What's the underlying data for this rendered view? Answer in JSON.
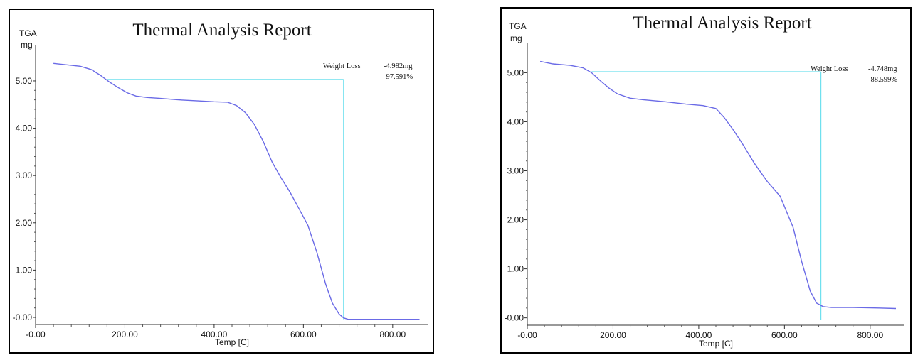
{
  "chart_data": [
    {
      "type": "line",
      "title": "Thermal Analysis Report",
      "ylabel": "TGA",
      "yunit": "mg",
      "xlabel": "Temp  [C]",
      "xlim": [
        0,
        880
      ],
      "ylim": [
        -0.15,
        5.75
      ],
      "xticks": [
        0,
        200,
        400,
        600,
        800
      ],
      "xtick_labels": [
        "-0.00",
        "200.00",
        "400.00",
        "600.00",
        "800.00"
      ],
      "yticks": [
        0,
        1,
        2,
        3,
        4,
        5
      ],
      "ytick_labels": [
        "-0.00",
        "1.00",
        "2.00",
        "3.00",
        "4.00",
        "5.00"
      ],
      "grid": false,
      "annotation": {
        "label": "Weight Loss",
        "mass": "-4.982mg",
        "percent": "-97.591%"
      },
      "marker": {
        "y": 5.03,
        "x_start": 160,
        "x_end": 690
      },
      "series": [
        {
          "color": "#6a6ae6",
          "x": [
            40,
            70,
            100,
            125,
            145,
            165,
            185,
            205,
            225,
            250,
            280,
            320,
            360,
            400,
            430,
            450,
            470,
            490,
            510,
            530,
            550,
            570,
            590,
            610,
            630,
            650,
            665,
            680,
            690,
            700,
            720,
            760,
            800,
            860
          ],
          "y": [
            5.37,
            5.34,
            5.31,
            5.24,
            5.12,
            4.98,
            4.86,
            4.75,
            4.68,
            4.65,
            4.63,
            4.6,
            4.58,
            4.56,
            4.55,
            4.48,
            4.33,
            4.08,
            3.72,
            3.28,
            2.95,
            2.65,
            2.3,
            1.95,
            1.38,
            0.7,
            0.3,
            0.07,
            -0.01,
            -0.04,
            -0.04,
            -0.04,
            -0.04,
            -0.04
          ]
        }
      ]
    },
    {
      "type": "line",
      "title": "Thermal Analysis Report",
      "ylabel": "TGA",
      "yunit": "mg",
      "xlabel": "Temp  [C]",
      "xlim": [
        0,
        880
      ],
      "ylim": [
        -0.15,
        5.6
      ],
      "xticks": [
        0,
        200,
        400,
        600,
        800
      ],
      "xtick_labels": [
        "-0.00",
        "200.00",
        "400.00",
        "600.00",
        "800.00"
      ],
      "yticks": [
        0,
        1,
        2,
        3,
        4,
        5
      ],
      "ytick_labels": [
        "-0.00",
        "1.00",
        "2.00",
        "3.00",
        "4.00",
        "5.00"
      ],
      "grid": false,
      "annotation": {
        "label": "Weight Loss",
        "mass": "-4.748mg",
        "percent": "-88.599%"
      },
      "marker": {
        "y": 5.02,
        "x_start": 150,
        "x_end": 685
      },
      "series": [
        {
          "color": "#6a6ae6",
          "x": [
            30,
            60,
            100,
            130,
            150,
            170,
            190,
            210,
            240,
            270,
            320,
            370,
            410,
            440,
            460,
            480,
            500,
            530,
            560,
            590,
            620,
            640,
            660,
            675,
            690,
            710,
            760,
            820,
            860
          ],
          "y": [
            5.23,
            5.18,
            5.15,
            5.1,
            5.0,
            4.84,
            4.69,
            4.57,
            4.48,
            4.45,
            4.41,
            4.36,
            4.33,
            4.27,
            4.08,
            3.84,
            3.58,
            3.15,
            2.78,
            2.48,
            1.85,
            1.15,
            0.55,
            0.3,
            0.23,
            0.21,
            0.21,
            0.2,
            0.19
          ]
        }
      ]
    }
  ]
}
